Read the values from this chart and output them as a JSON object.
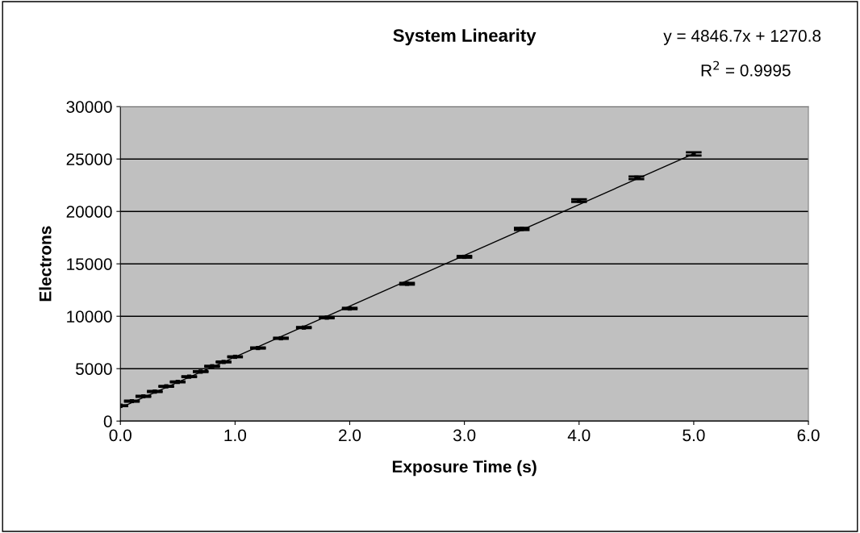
{
  "chart_data": {
    "type": "scatter",
    "title": "System Linearity",
    "xlabel": "Exposure Time (s)",
    "ylabel": "Electrons",
    "annotations": [
      "y = 4846.7x + 1270.8",
      "R$^{2}$ = 0.9995"
    ],
    "series": [
      {
        "color": "#000000",
        "marker": "square",
        "x": [
          0,
          0.1,
          0.2,
          0.3,
          0.4,
          0.5,
          0.6,
          0.7,
          0.8,
          0.9,
          1.0,
          1.2,
          1.4,
          1.6,
          1.8,
          2.0,
          2.5,
          3.0,
          3.5,
          4.0,
          4.5,
          5.0
        ],
        "values": [
          1460,
          1900,
          2360,
          2820,
          3310,
          3740,
          4230,
          4720,
          5230,
          5640,
          6130,
          6970,
          7900,
          8920,
          9870,
          10740,
          13100,
          15670,
          18330,
          21030,
          23210,
          25490
        ],
        "errors": [
          40,
          40,
          40,
          40,
          40,
          40,
          40,
          40,
          40,
          40,
          40,
          50,
          50,
          50,
          60,
          60,
          80,
          80,
          100,
          120,
          130,
          150
        ]
      },
      {
        "type": "line",
        "color": "#000000",
        "x": [
          0,
          5.0
        ],
        "values": [
          1270,
          25500
        ]
      }
    ],
    "xlim": [
      0,
      6
    ],
    "xticks": [
      {
        "value": 0,
        "label": "0.0"
      },
      {
        "value": 1,
        "label": "1.0"
      },
      {
        "value": 2,
        "label": "2.0"
      },
      {
        "value": 3,
        "label": "3.0"
      },
      {
        "value": 4,
        "label": "4.0"
      },
      {
        "value": 5,
        "label": "5.0"
      },
      {
        "value": 6,
        "label": "6.0"
      }
    ],
    "ylim": [
      0,
      30000
    ],
    "yticks": [
      0,
      5000,
      10000,
      15000,
      20000,
      25000,
      30000
    ],
    "grid": "y",
    "legend": false
  }
}
